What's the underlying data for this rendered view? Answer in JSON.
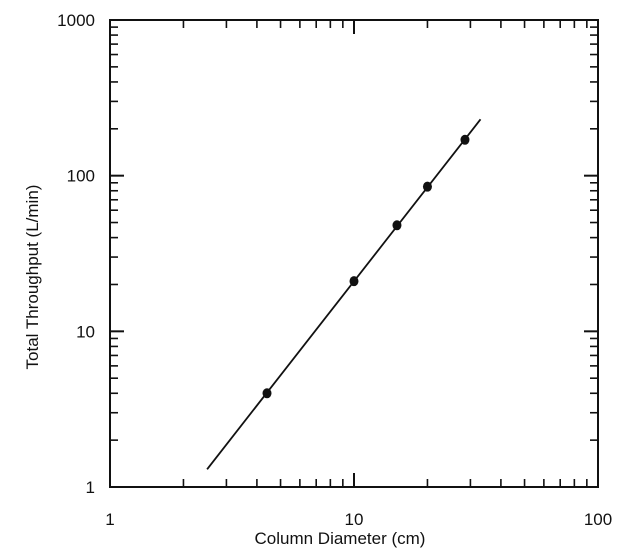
{
  "chart_data": {
    "type": "scatter",
    "title": "",
    "xlabel": "Column Diameter (cm)",
    "ylabel": "Total Throughput (L/min)",
    "x_scale": "log",
    "y_scale": "log",
    "xlim": [
      1,
      100
    ],
    "ylim": [
      1,
      1000
    ],
    "x_tick_labels": [
      "1",
      "10",
      "100"
    ],
    "y_tick_labels": [
      "1",
      "10",
      "100",
      "1000"
    ],
    "x_tick_values": [
      1,
      10,
      100
    ],
    "y_tick_values": [
      1,
      10,
      100,
      1000
    ],
    "grid": false,
    "legend": "none",
    "series": [
      {
        "kind": "points",
        "x": [
          4.4,
          10,
          15,
          20,
          28.5
        ],
        "y": [
          4,
          21,
          48,
          85,
          170
        ]
      },
      {
        "kind": "fit-line",
        "x": [
          2.5,
          33
        ],
        "y": [
          1.3,
          230
        ]
      }
    ],
    "colors": {
      "ink": "#111111",
      "background": "#ffffff"
    }
  }
}
